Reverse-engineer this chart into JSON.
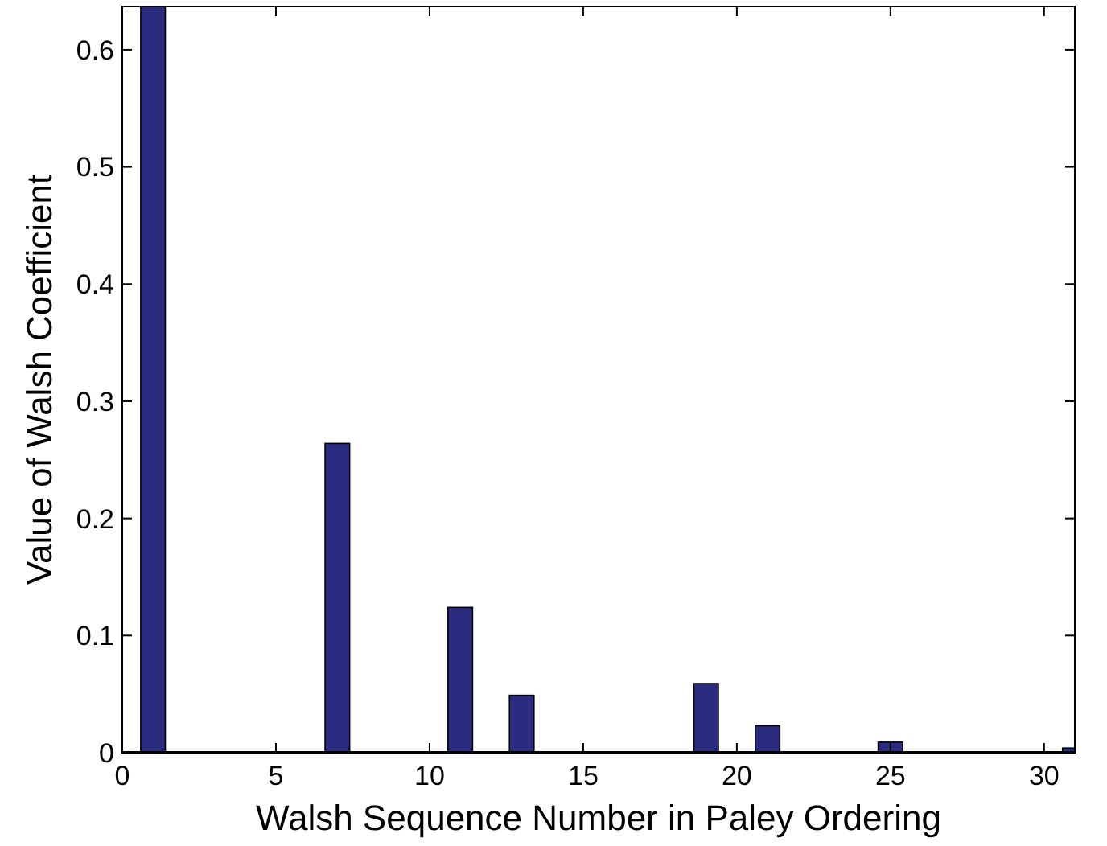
{
  "chart_data": {
    "type": "bar",
    "xlabel": "Walsh Sequence Number in Paley Ordering",
    "ylabel": "Value of Walsh Coefficient",
    "x": [
      1,
      7,
      11,
      13,
      19,
      21,
      25,
      31
    ],
    "values": [
      0.637,
      0.264,
      0.124,
      0.049,
      0.059,
      0.023,
      0.009,
      0.004
    ],
    "color": "#2b2b7f",
    "xlim": [
      0,
      31
    ],
    "xticks": [
      0,
      5,
      10,
      15,
      20,
      25,
      30
    ],
    "ylim": [
      0,
      0.637
    ],
    "yticks": [
      0,
      0.1,
      0.2,
      0.3,
      0.4,
      0.5,
      0.6
    ],
    "grid": false
  }
}
